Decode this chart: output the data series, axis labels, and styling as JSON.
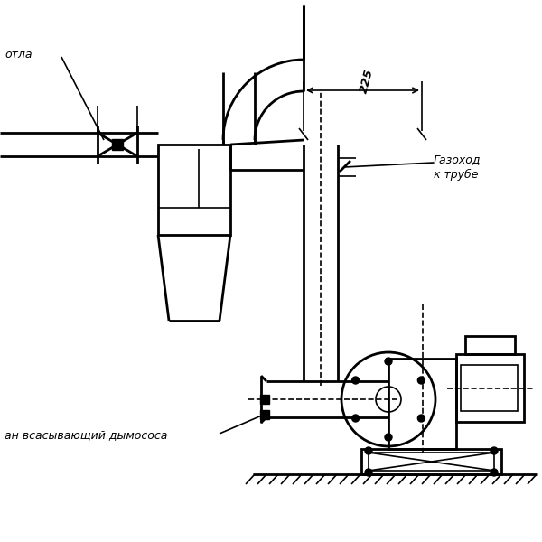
{
  "bg_color": "#ffffff",
  "line_color": "#000000",
  "text_котла": "отла",
  "text_газоход": "Газоход\nк трубе",
  "text_патрубок": "ан всасывающий дымососа",
  "text_225": "225"
}
